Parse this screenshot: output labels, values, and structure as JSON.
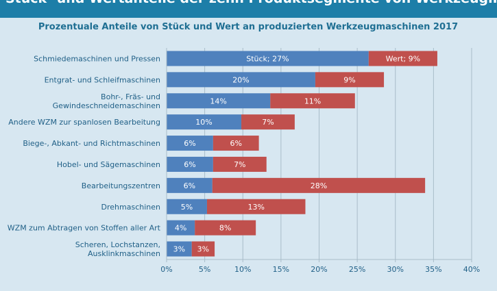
{
  "header": {
    "title": "Stück- und Wertanteile der zehn Produktsegmente von Werkzeugmaschinen"
  },
  "colors": {
    "background": "#d7e7f1",
    "title_bar": "#1d7ea8",
    "subtitle_text": "#1f6f93",
    "label_text": "#1f5f86",
    "stueck_bar": "#4f81bd",
    "wert_bar": "#c0504d",
    "grid": "#a8bcc9"
  },
  "chart_data": {
    "type": "bar",
    "orientation": "horizontal",
    "stacked": true,
    "title": "Prozentuale Anteile von Stück und Wert an produzierten Werkzeugmaschinen 2017",
    "categories": [
      [
        "Schmiedemaschinen und Pressen"
      ],
      [
        "Entgrat- und Schleifmaschinen"
      ],
      [
        "Bohr-, Fräs- und",
        "Gewindeschneidemaschinen"
      ],
      [
        "Andere WZM zur spanlosen Bearbeitung"
      ],
      [
        "Biege-, Abkant- und Richtmaschinen"
      ],
      [
        "Hobel- und Sägemaschinen"
      ],
      [
        "Bearbeitungszentren"
      ],
      [
        "Drehmaschinen"
      ],
      [
        "WZM zum Abtragen von Stoffen aller Art"
      ],
      [
        "Scheren, Lochstanzen,",
        "Ausklinkmaschinen"
      ]
    ],
    "series": [
      {
        "name": "Stück",
        "values": [
          26.5,
          19.5,
          13.6,
          9.8,
          6.1,
          6.1,
          6.0,
          5.3,
          3.7,
          3.3
        ],
        "labels": [
          "Stück; 27%",
          "20%",
          "14%",
          "10%",
          "6%",
          "6%",
          "6%",
          "5%",
          "4%",
          "3%"
        ]
      },
      {
        "name": "Wert",
        "values": [
          9.0,
          9.0,
          11.1,
          7.0,
          6.0,
          7.0,
          27.9,
          12.9,
          8.0,
          3.0
        ],
        "labels": [
          "Wert; 9%",
          "9%",
          "11%",
          "7%",
          "6%",
          "7%",
          "28%",
          "13%",
          "8%",
          "3%"
        ]
      }
    ],
    "xlim": [
      0,
      40
    ],
    "ticks": [
      "0%",
      "5%",
      "10%",
      "15%",
      "20%",
      "25%",
      "30%",
      "35%",
      "40%"
    ],
    "tick_values": [
      0,
      5,
      10,
      15,
      20,
      25,
      30,
      35,
      40
    ],
    "grid": true,
    "legend": "none"
  }
}
